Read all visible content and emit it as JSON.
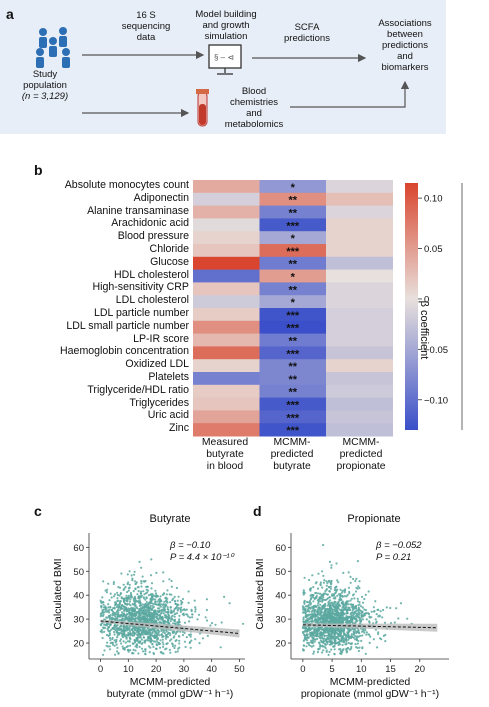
{
  "panel_a": {
    "letter": "a",
    "study_population": [
      "Study",
      "population",
      "(n = 3,129)"
    ],
    "sequencing": [
      "16 S",
      "sequencing",
      "data"
    ],
    "model": [
      "Model building",
      "and growth",
      "simulation"
    ],
    "scfa": [
      "SCFA",
      "predictions"
    ],
    "associations": [
      "Associations",
      "between",
      "predictions",
      "and",
      "biomarkers"
    ],
    "blood": [
      "Blood",
      "chemistries",
      "and",
      "metabolomics"
    ],
    "colors": {
      "box": "#e8eef7",
      "people": "#2c6fb5",
      "arrow": "#555555",
      "vial": "#c0392b"
    }
  },
  "panel_b": {
    "letter": "b",
    "legend_title": "β coefficient",
    "legend_ticks": [
      "0.10",
      "0.05",
      "0",
      "−0.05",
      "−0.10"
    ],
    "columns": [
      "Measured butyrate in blood",
      "MCMM-predicted butyrate",
      "MCMM-predicted propionate"
    ],
    "column_lines": [
      [
        "Measured",
        "butyrate",
        "in blood"
      ],
      [
        "MCMM-",
        "predicted",
        "butyrate"
      ],
      [
        "MCMM-",
        "predicted",
        "propionate"
      ]
    ],
    "rows": [
      {
        "label": "Absolute monocytes count",
        "values": [
          0.04,
          -0.065,
          -0.01
        ],
        "stars": "*"
      },
      {
        "label": "Adiponectin",
        "values": [
          -0.015,
          0.06,
          0.025
        ],
        "stars": "**"
      },
      {
        "label": "Alanine transaminase",
        "values": [
          0.035,
          -0.085,
          -0.01
        ],
        "stars": "**"
      },
      {
        "label": "Arachidonic acid",
        "values": [
          -0.005,
          -0.12,
          0.01
        ],
        "stars": "***"
      },
      {
        "label": "Blood pressure",
        "values": [
          0.01,
          -0.05,
          0.01
        ],
        "stars": "*"
      },
      {
        "label": "Chloride",
        "values": [
          0.02,
          0.085,
          0.01
        ],
        "stars": "***"
      },
      {
        "label": "Glucose",
        "values": [
          0.115,
          -0.09,
          -0.03
        ],
        "stars": "**"
      },
      {
        "label": "HDL cholesterol",
        "values": [
          -0.1,
          0.05,
          0.0
        ],
        "stars": "*"
      },
      {
        "label": "High-sensitivity CRP",
        "values": [
          0.02,
          -0.085,
          -0.01
        ],
        "stars": "**"
      },
      {
        "label": "LDL cholesterol",
        "values": [
          -0.02,
          -0.05,
          -0.01
        ],
        "stars": "*"
      },
      {
        "label": "LDL particle number",
        "values": [
          0.015,
          -0.125,
          -0.015
        ],
        "stars": "***"
      },
      {
        "label": "LDL small particle number",
        "values": [
          0.06,
          -0.13,
          -0.015
        ],
        "stars": "***"
      },
      {
        "label": "LP-IR score",
        "values": [
          0.03,
          -0.09,
          -0.015
        ],
        "stars": "**"
      },
      {
        "label": "Haemoglobin concentration",
        "values": [
          0.085,
          -0.11,
          -0.025
        ],
        "stars": "***"
      },
      {
        "label": "Oxidized LDL",
        "values": [
          0.01,
          -0.08,
          0.01
        ],
        "stars": "**"
      },
      {
        "label": "Platelets",
        "values": [
          -0.085,
          -0.08,
          -0.025
        ],
        "stars": "**"
      },
      {
        "label": "Triglyceride/HDL ratio",
        "values": [
          0.015,
          -0.085,
          -0.02
        ],
        "stars": "**"
      },
      {
        "label": "Triglycerides",
        "values": [
          0.02,
          -0.12,
          -0.03
        ],
        "stars": "***"
      },
      {
        "label": "Uric acid",
        "values": [
          0.045,
          -0.11,
          -0.025
        ],
        "stars": "***"
      },
      {
        "label": "Zinc",
        "values": [
          0.075,
          -0.125,
          -0.03
        ],
        "stars": "***"
      }
    ]
  },
  "panel_c": {
    "letter": "c",
    "title": "Butyrate",
    "ylabel": "Calculated BMI",
    "xlabel_line1": "MCMM-predicted",
    "xlabel_line2": "butyrate (mmol gDW⁻¹ h⁻¹)",
    "stat_beta": "β = −0.10",
    "stat_p": "P = 4.4 × 10⁻¹⁰"
  },
  "panel_d": {
    "letter": "d",
    "title": "Propionate",
    "ylabel": "Calculated BMI",
    "xlabel_line1": "MCMM-predicted",
    "xlabel_line2": "propionate (mmol gDW⁻¹ h⁻¹)",
    "stat_beta": "β = −0.052",
    "stat_p": "P = 0.21"
  },
  "chart_data": [
    {
      "type": "heatmap",
      "columns": [
        "Measured butyrate in blood",
        "MCMM-predicted butyrate",
        "MCMM-predicted propionate"
      ],
      "value_range": [
        -0.13,
        0.115
      ],
      "colorbar_ticks": [
        0.1,
        0.05,
        0,
        -0.05,
        -0.1
      ],
      "colorbar_label": "β coefficient",
      "colors": {
        "low": "#3a4fc9",
        "mid": "#e8e0dc",
        "high": "#d9452e"
      }
    },
    {
      "type": "scatter",
      "title": "Butyrate",
      "xlabel": "MCMM-predicted butyrate (mmol gDW⁻¹ h⁻¹)",
      "ylabel": "Calculated BMI",
      "xlim": [
        -2,
        52
      ],
      "ylim": [
        15,
        66
      ],
      "xticks": [
        0,
        10,
        20,
        30,
        40,
        50
      ],
      "yticks": [
        20,
        30,
        40,
        50,
        60
      ],
      "fit_line": {
        "x": [
          0,
          50
        ],
        "y": [
          29.2,
          24.0
        ]
      },
      "point_cloud": {
        "n": 3129,
        "x_center": 15,
        "x_spread": 8,
        "y_center": 28.5,
        "y_spread": 6
      },
      "colors": {
        "points": "#5aa8a0",
        "line": "#111111",
        "ci": "#bdbdbd"
      }
    },
    {
      "type": "scatter",
      "title": "Propionate",
      "xlabel": "MCMM-predicted propionate (mmol gDW⁻¹ h⁻¹)",
      "ylabel": "Calculated BMI",
      "xlim": [
        -1,
        25
      ],
      "ylim": [
        15,
        66
      ],
      "xticks": [
        0,
        5,
        10,
        15,
        20
      ],
      "yticks": [
        20,
        30,
        40,
        50,
        60
      ],
      "fit_line": {
        "x": [
          0,
          23
        ],
        "y": [
          27.6,
          26.4
        ]
      },
      "point_cloud": {
        "n": 3129,
        "x_center": 5,
        "x_spread": 3,
        "y_center": 28.5,
        "y_spread": 6
      },
      "colors": {
        "points": "#5aa8a0",
        "line": "#111111",
        "ci": "#bdbdbd"
      }
    }
  ]
}
